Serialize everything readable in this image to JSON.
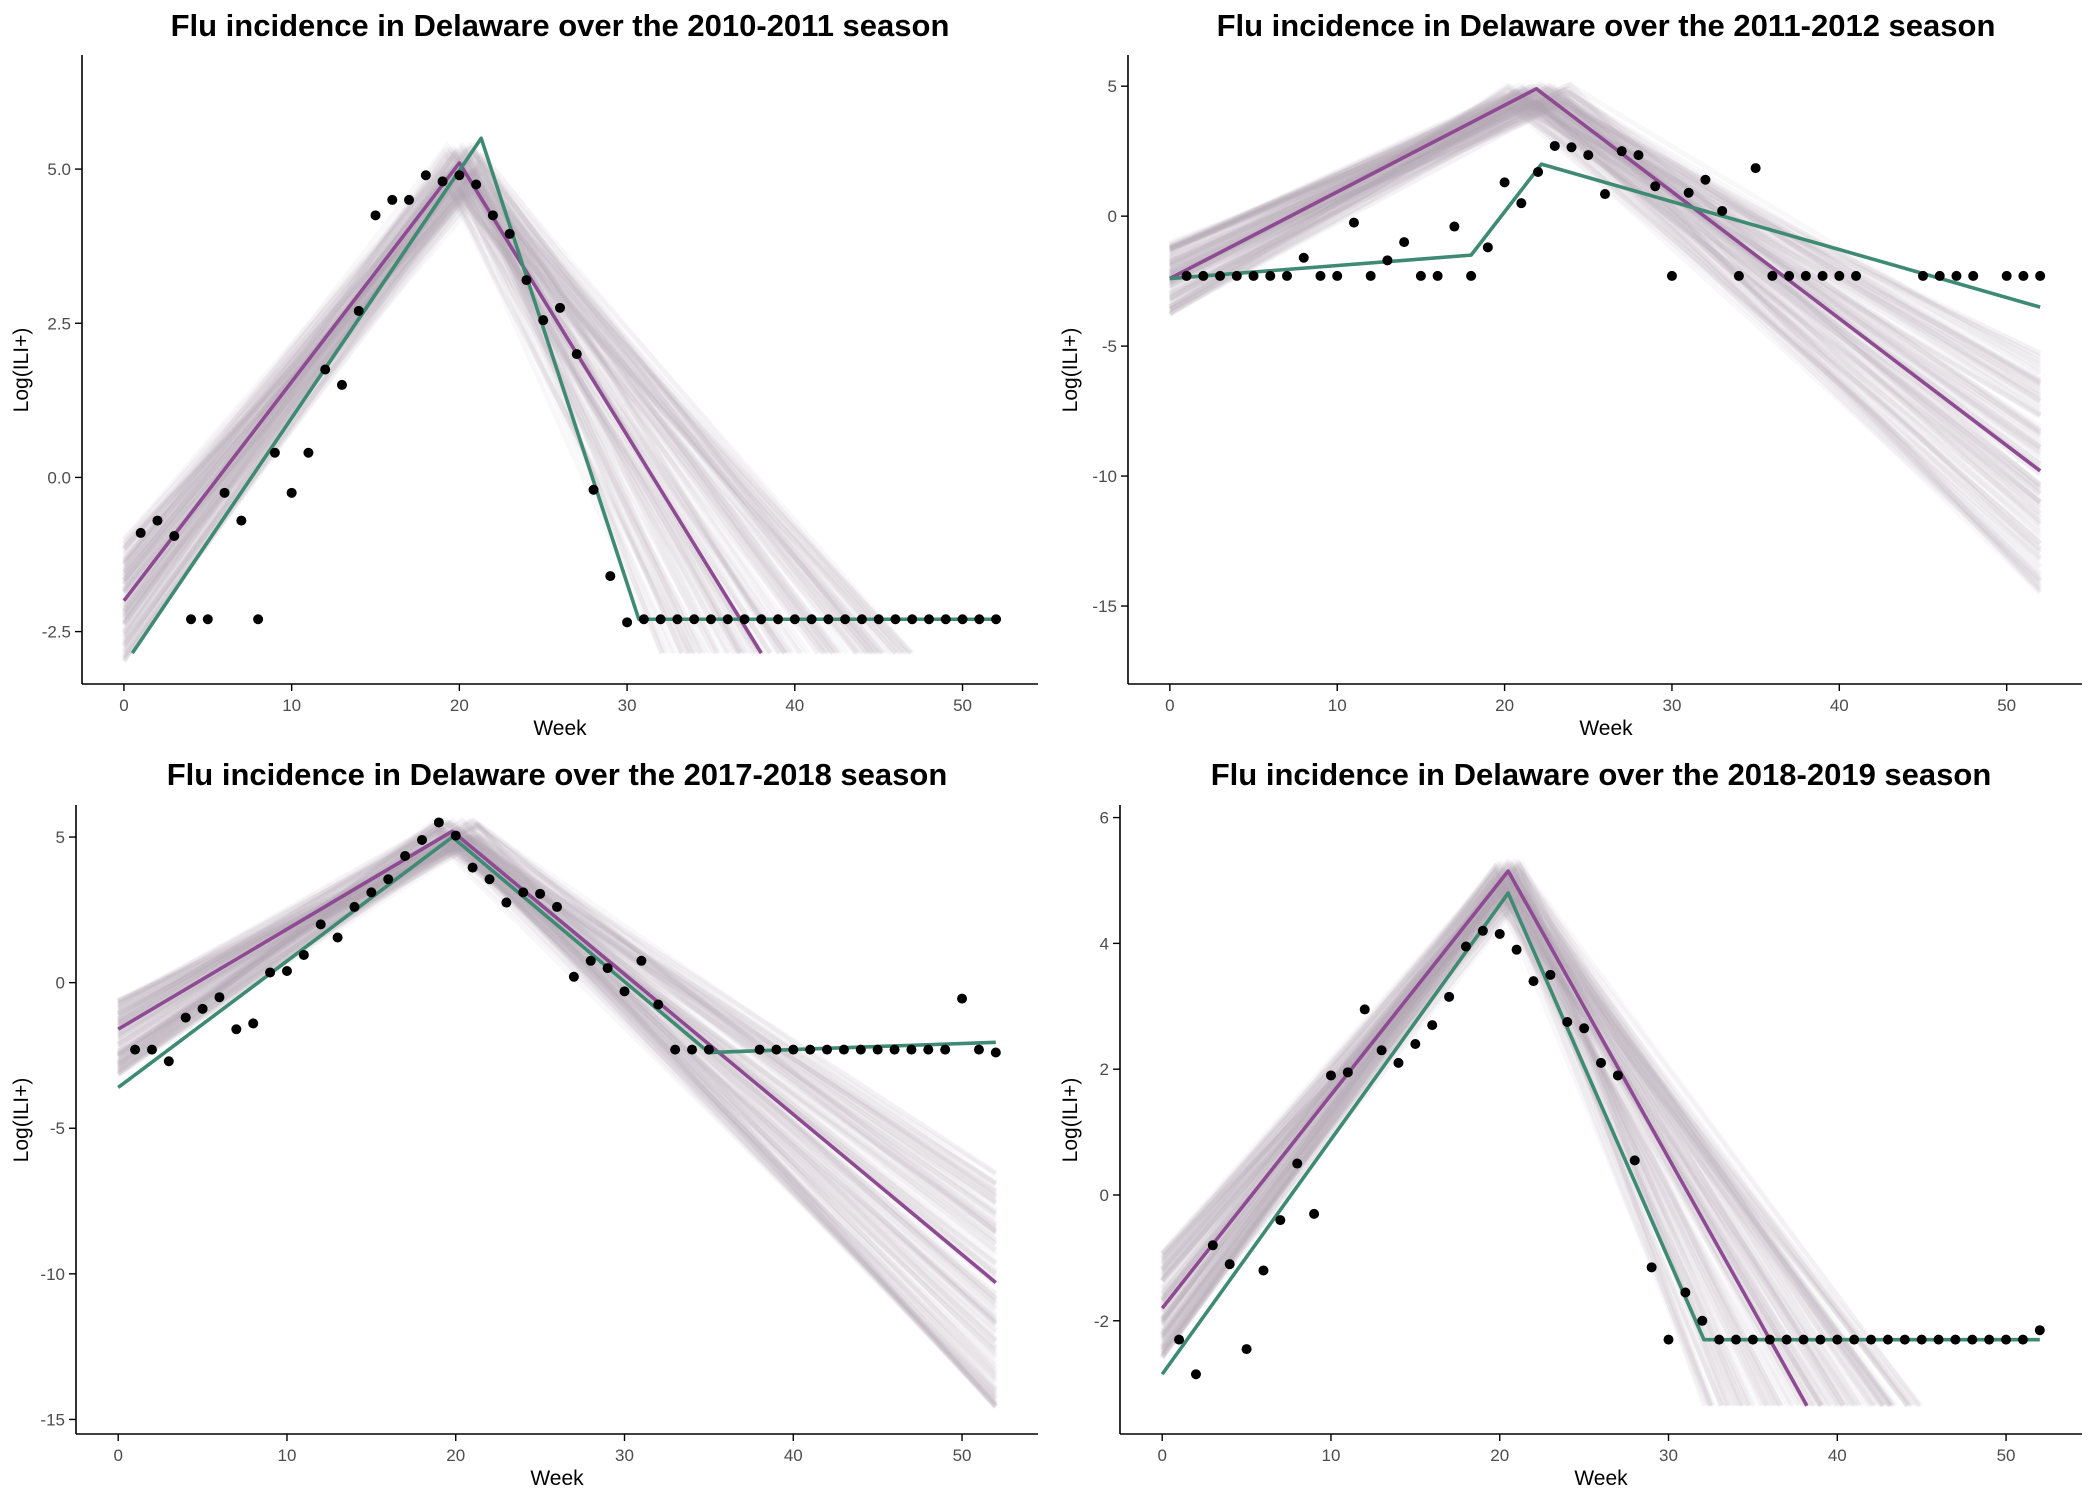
{
  "colors": {
    "band": "#b8a9ad",
    "model_purple": "#8e4a92",
    "model_green": "#3f8a72",
    "points": "#000000",
    "axis": "#000000",
    "tick_text": "#4d4d4d"
  },
  "chart_data": [
    {
      "type": "scatter",
      "title": "Flu incidence in Delaware over the 2010-2011 season",
      "xlabel": "Week",
      "ylabel": "Log(ILI+)",
      "xlim": [
        -2.5,
        54.5
      ],
      "ylim": [
        -3.35,
        6.85
      ],
      "xticks": [
        0,
        10,
        20,
        30,
        40,
        50
      ],
      "yticks": [
        -2.5,
        0,
        2.5,
        5
      ],
      "ytick_labels": [
        "-2.5",
        "0.0",
        "2.5",
        "5.0"
      ],
      "grid": false,
      "legend": "none",
      "points": {
        "x": [
          1,
          2,
          3,
          4,
          5,
          6,
          7,
          8,
          9,
          10,
          11,
          12,
          13,
          14,
          15,
          16,
          17,
          18,
          19,
          20,
          21,
          22,
          23,
          24,
          25,
          26,
          27,
          28,
          29,
          30,
          31,
          32,
          33,
          34,
          35,
          36,
          37,
          38,
          39,
          40,
          41,
          42,
          43,
          44,
          45,
          46,
          47,
          48,
          49,
          50,
          51,
          52
        ],
        "y": [
          -0.9,
          -0.7,
          -0.95,
          -2.3,
          -2.3,
          -0.25,
          -0.7,
          -2.3,
          0.4,
          -0.25,
          0.4,
          1.75,
          1.5,
          2.7,
          4.25,
          4.5,
          4.5,
          4.9,
          4.8,
          4.9,
          4.75,
          4.25,
          3.95,
          3.2,
          2.55,
          2.75,
          2.0,
          -0.2,
          -1.6,
          -2.35,
          -2.3,
          -2.3,
          -2.3,
          -2.3,
          -2.3,
          -2.3,
          -2.3,
          -2.3,
          -2.3,
          -2.3,
          -2.3,
          -2.3,
          -2.3,
          -2.3,
          -2.3,
          -2.3,
          -2.3,
          -2.3,
          -2.3,
          -2.3,
          -2.3,
          -2.3
        ]
      },
      "lines": [
        {
          "color": "model_purple",
          "x": [
            0,
            20,
            38
          ],
          "y": [
            -2.0,
            5.1,
            -2.85
          ]
        },
        {
          "color": "model_green",
          "x": [
            0.5,
            21.3,
            30.7,
            52
          ],
          "y": [
            -2.85,
            5.5,
            -2.3,
            -2.3
          ]
        }
      ],
      "band": {
        "peak_x": [
          19,
          21.5
        ],
        "peak_y": [
          4.6,
          5.4
        ],
        "start_y": [
          -3.0,
          -1.0
        ],
        "end_y": [
          -2.85,
          -2.85
        ],
        "clip_y": -2.85,
        "end_x": 45
      }
    },
    {
      "type": "scatter",
      "title": "Flu incidence in Delaware over the 2011-2012 season",
      "xlabel": "Week",
      "ylabel": "Log(ILI+)",
      "xlim": [
        -2.5,
        54.5
      ],
      "ylim": [
        -18,
        6.2
      ],
      "xticks": [
        0,
        10,
        20,
        30,
        40,
        50
      ],
      "yticks": [
        -15,
        -10,
        -5,
        0,
        5
      ],
      "ytick_labels": [
        "-15",
        "-10",
        "-5",
        "0",
        "5"
      ],
      "grid": false,
      "legend": "none",
      "points": {
        "x": [
          1,
          2,
          3,
          4,
          5,
          6,
          7,
          8,
          9,
          10,
          11,
          12,
          13,
          14,
          15,
          16,
          17,
          18,
          19,
          20,
          21,
          22,
          23,
          24,
          25,
          26,
          27,
          28,
          29,
          30,
          31,
          32,
          33,
          34,
          35,
          36,
          37,
          38,
          39,
          40,
          41,
          45,
          46,
          47,
          48,
          50,
          51,
          52
        ],
        "y": [
          -2.3,
          -2.3,
          -2.3,
          -2.3,
          -2.3,
          -2.3,
          -2.3,
          -1.6,
          -2.3,
          -2.3,
          -0.25,
          -2.3,
          -1.7,
          -1.0,
          -2.3,
          -2.3,
          -0.4,
          -2.3,
          -1.2,
          1.3,
          0.5,
          1.7,
          2.7,
          2.65,
          2.35,
          0.85,
          2.5,
          2.35,
          1.15,
          -2.3,
          0.9,
          1.4,
          0.2,
          -2.3,
          1.85,
          -2.3,
          -2.3,
          -2.3,
          -2.3,
          -2.3,
          -2.3,
          -2.3,
          -2.3,
          -2.3,
          -2.3,
          -2.3,
          -2.3,
          -2.3
        ]
      },
      "lines": [
        {
          "color": "model_purple",
          "x": [
            0,
            21.9,
            52
          ],
          "y": [
            -2.4,
            4.9,
            -9.8
          ]
        },
        {
          "color": "model_green",
          "x": [
            0,
            18,
            22.2,
            52
          ],
          "y": [
            -2.4,
            -1.5,
            2.0,
            -3.5
          ]
        }
      ],
      "band": {
        "peak_x": [
          20,
          24
        ],
        "peak_y": [
          4.2,
          5.1
        ],
        "start_y": [
          -3.8,
          -1.0
        ],
        "end_y": [
          -14.5,
          -5.0
        ],
        "clip_y": -18,
        "end_x": 52
      }
    },
    {
      "type": "scatter",
      "title": "Flu incidence in Delaware over the 2017-2018 season",
      "xlabel": "Week",
      "ylabel": "Log(ILI+)",
      "xlim": [
        -2.5,
        54.5
      ],
      "ylim": [
        -15.5,
        6.1
      ],
      "xticks": [
        0,
        10,
        20,
        30,
        40,
        50
      ],
      "yticks": [
        -15,
        -10,
        -5,
        0,
        5
      ],
      "ytick_labels": [
        "-15",
        "-10",
        "-5",
        "0",
        "5"
      ],
      "grid": false,
      "legend": "none",
      "points": {
        "x": [
          1,
          2,
          3,
          4,
          5,
          6,
          7,
          8,
          9,
          10,
          11,
          12,
          13,
          14,
          15,
          16,
          17,
          18,
          19,
          20,
          21,
          22,
          23,
          24,
          25,
          26,
          27,
          28,
          29,
          30,
          31,
          32,
          33,
          34,
          35,
          38,
          39,
          40,
          41,
          42,
          43,
          44,
          45,
          46,
          47,
          48,
          49,
          50,
          51,
          52
        ],
        "y": [
          -2.3,
          -2.3,
          -2.7,
          -1.2,
          -0.9,
          -0.5,
          -1.6,
          -1.4,
          0.35,
          0.4,
          0.95,
          2.0,
          1.55,
          2.6,
          3.1,
          3.55,
          4.35,
          4.9,
          5.5,
          5.05,
          3.95,
          3.55,
          2.75,
          3.1,
          3.05,
          2.6,
          0.2,
          0.75,
          0.5,
          -0.3,
          0.75,
          -0.75,
          -2.3,
          -2.3,
          -2.3,
          -2.3,
          -2.3,
          -2.3,
          -2.3,
          -2.3,
          -2.3,
          -2.3,
          -2.3,
          -2.3,
          -2.3,
          -2.3,
          -2.3,
          -0.55,
          -2.3,
          -2.4
        ]
      },
      "lines": [
        {
          "color": "model_purple",
          "x": [
            0,
            19.8,
            52
          ],
          "y": [
            -1.6,
            5.2,
            -10.3
          ]
        },
        {
          "color": "model_green",
          "x": [
            0,
            19.8,
            35,
            52
          ],
          "y": [
            -3.6,
            5.0,
            -2.4,
            -2.05
          ]
        }
      ],
      "band": {
        "peak_x": [
          18.5,
          21.5
        ],
        "peak_y": [
          4.7,
          5.6
        ],
        "start_y": [
          -3.2,
          -0.6
        ],
        "end_y": [
          -14.6,
          -6.5
        ],
        "clip_y": -15.5,
        "end_x": 52
      }
    },
    {
      "type": "scatter",
      "title": "Flu incidence in Delaware over the 2018-2019 season",
      "xlabel": "Week",
      "ylabel": "Log(ILI+)",
      "xlim": [
        -2.5,
        54.5
      ],
      "ylim": [
        -3.8,
        6.2
      ],
      "xticks": [
        0,
        10,
        20,
        30,
        40,
        50
      ],
      "yticks": [
        -2,
        0,
        2,
        4,
        6
      ],
      "ytick_labels": [
        "-2",
        "0",
        "2",
        "4",
        "6"
      ],
      "grid": false,
      "legend": "none",
      "points": {
        "x": [
          1,
          2,
          3,
          4,
          5,
          6,
          7,
          8,
          9,
          10,
          11,
          12,
          13,
          14,
          15,
          16,
          17,
          18,
          19,
          20,
          21,
          22,
          23,
          24,
          25,
          26,
          27,
          28,
          29,
          30,
          31,
          32,
          33,
          34,
          35,
          36,
          37,
          38,
          39,
          40,
          41,
          42,
          43,
          44,
          45,
          46,
          47,
          48,
          49,
          50,
          51,
          52
        ],
        "y": [
          -2.3,
          -2.85,
          -0.8,
          -1.1,
          -2.45,
          -1.2,
          -0.4,
          0.5,
          -0.3,
          1.9,
          1.95,
          2.95,
          2.3,
          2.1,
          2.4,
          2.7,
          3.15,
          3.95,
          4.2,
          4.15,
          3.9,
          3.4,
          3.5,
          2.75,
          2.65,
          2.1,
          1.9,
          0.55,
          -1.15,
          -2.3,
          -1.55,
          -2.0,
          -2.3,
          -2.3,
          -2.3,
          -2.3,
          -2.3,
          -2.3,
          -2.3,
          -2.3,
          -2.3,
          -2.3,
          -2.3,
          -2.3,
          -2.3,
          -2.3,
          -2.3,
          -2.3,
          -2.3,
          -2.3,
          -2.3,
          -2.15
        ]
      },
      "lines": [
        {
          "color": "model_purple",
          "x": [
            0,
            20.5,
            38.2
          ],
          "y": [
            -1.8,
            5.15,
            -3.35
          ]
        },
        {
          "color": "model_green",
          "x": [
            0,
            20.5,
            32.1,
            52
          ],
          "y": [
            -2.85,
            4.8,
            -2.3,
            -2.3
          ]
        }
      ],
      "band": {
        "peak_x": [
          19.5,
          21.5
        ],
        "peak_y": [
          4.7,
          5.3
        ],
        "start_y": [
          -2.6,
          -0.9
        ],
        "end_y": [
          -3.35,
          -3.35
        ],
        "clip_y": -3.35,
        "end_x": 43
      }
    }
  ]
}
